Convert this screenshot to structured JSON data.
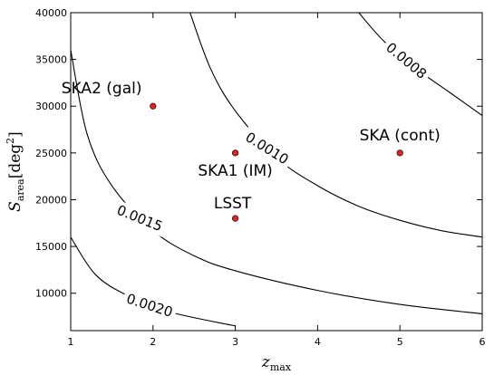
{
  "chart_data": {
    "type": "scatter",
    "xlabel": "z",
    "xlabel_sub": "max",
    "ylabel": "S",
    "ylabel_sub": "area",
    "ylabel_unit": "[deg",
    "ylabel_unit_sup": "2",
    "ylabel_unit_close": "]",
    "xlim": [
      1,
      6
    ],
    "ylim": [
      6000,
      40000
    ],
    "xticks": [
      1,
      2,
      3,
      4,
      5,
      6
    ],
    "xtick_labels": [
      "1",
      "2",
      "3",
      "4",
      "5",
      "6"
    ],
    "yticks": [
      10000,
      15000,
      20000,
      25000,
      30000,
      35000,
      40000
    ],
    "ytick_labels": [
      "10000",
      "15000",
      "20000",
      "25000",
      "30000",
      "35000",
      "40000"
    ],
    "grid": false,
    "points": [
      {
        "label": "SKA2 (gal)",
        "x": 2,
        "y": 30000
      },
      {
        "label": "SKA1 (IM)",
        "x": 3,
        "y": 25000
      },
      {
        "label": "LSST",
        "x": 3,
        "y": 18000
      },
      {
        "label": "SKA (cont)",
        "x": 5,
        "y": 25000
      }
    ],
    "point_color": "#d62728",
    "contours": [
      {
        "label": "0.0008",
        "points": [
          [
            4.5,
            40000
          ],
          [
            4.8,
            37000
          ],
          [
            5.2,
            34000
          ],
          [
            5.6,
            31500
          ],
          [
            6,
            29000
          ]
        ]
      },
      {
        "label": "0.0010",
        "points": [
          [
            2.45,
            40000
          ],
          [
            2.7,
            34000
          ],
          [
            3,
            29500
          ],
          [
            3.5,
            24500
          ],
          [
            4,
            21500
          ],
          [
            4.5,
            19300
          ],
          [
            5,
            17800
          ],
          [
            5.5,
            16700
          ],
          [
            6,
            16000
          ]
        ]
      },
      {
        "label": "0.0015",
        "points": [
          [
            1,
            36000
          ],
          [
            1.2,
            27000
          ],
          [
            1.5,
            21500
          ],
          [
            2,
            16700
          ],
          [
            2.5,
            14000
          ],
          [
            3,
            12400
          ],
          [
            4,
            10300
          ],
          [
            5,
            8800
          ],
          [
            6,
            7800
          ]
        ]
      },
      {
        "label": "0.0020",
        "points": [
          [
            1,
            16000
          ],
          [
            1.3,
            12000
          ],
          [
            1.7,
            9700
          ],
          [
            2.2,
            8000
          ],
          [
            3,
            6500
          ]
        ]
      }
    ]
  }
}
